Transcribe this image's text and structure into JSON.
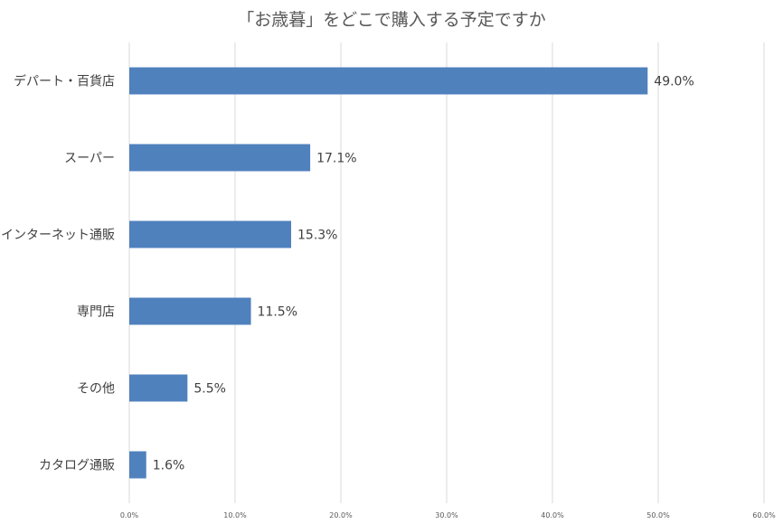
{
  "chart_data": {
    "type": "bar",
    "orientation": "horizontal",
    "title": "「お歳暮」をどこで購入する予定ですか",
    "categories": [
      "デパート・百貨店",
      "スーパー",
      "インターネット通販",
      "専門店",
      "その他",
      "カタログ通販"
    ],
    "values": [
      49.0,
      17.1,
      15.3,
      11.5,
      5.5,
      1.6
    ],
    "data_labels": [
      "49.0%",
      "17.1%",
      "15.3%",
      "11.5%",
      "5.5%",
      "1.6%"
    ],
    "xlim": [
      0,
      60
    ],
    "x_ticks": [
      0,
      10,
      20,
      30,
      40,
      50,
      60
    ],
    "x_tick_labels": [
      "0.0%",
      "10.0%",
      "20.0%",
      "30.0%",
      "40.0%",
      "50.0%",
      "60.0%"
    ],
    "xlabel": "",
    "ylabel": "",
    "grid": "vertical",
    "legend": "none",
    "bar_color": "#4f81bd"
  }
}
